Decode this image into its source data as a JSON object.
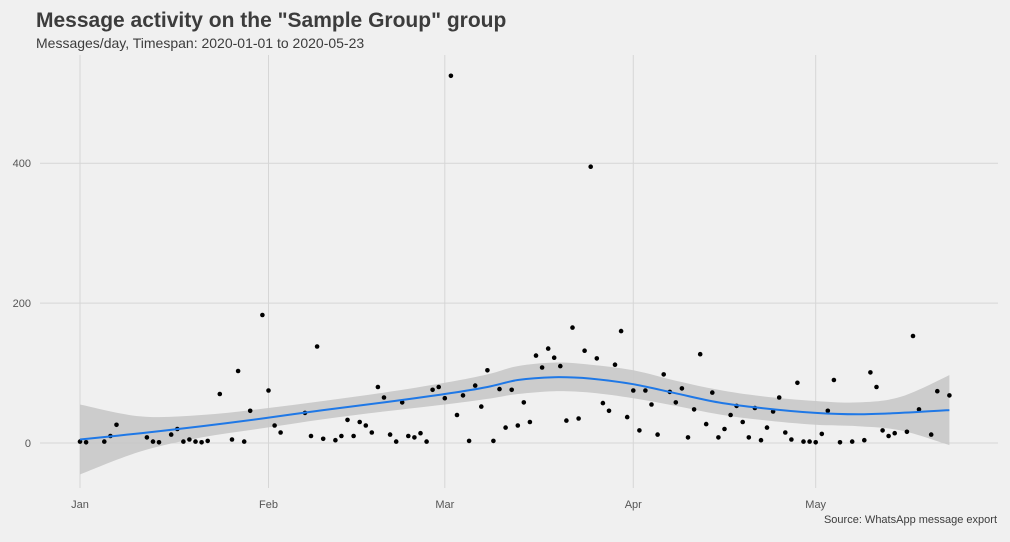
{
  "title": "Message activity on the \"Sample Group\" group",
  "subtitle": "Messages/day, Timespan: 2020-01-01 to 2020-05-23",
  "caption": "Source: WhatsApp message export",
  "chart_data": {
    "type": "scatter",
    "title": "Message activity on the \"Sample Group\" group",
    "subtitle": "Messages/day, Timespan: 2020-01-01 to 2020-05-23",
    "xlabel": "",
    "ylabel": "",
    "x_ticks": [
      {
        "label": "Jan",
        "date": "2020-01-01"
      },
      {
        "label": "Feb",
        "date": "2020-02-01"
      },
      {
        "label": "Mar",
        "date": "2020-03-01"
      },
      {
        "label": "Apr",
        "date": "2020-04-01"
      },
      {
        "label": "May",
        "date": "2020-05-01"
      }
    ],
    "y_ticks": [
      0,
      200,
      400
    ],
    "xlim": [
      "2019-12-31",
      "2020-05-25"
    ],
    "ylim": [
      -80,
      540
    ],
    "grid": true,
    "colors": {
      "points": "#000000",
      "smooth_line": "#1f78e6",
      "confidence_band": "#c8c8c8",
      "grid": "#d6d6d6",
      "background": "#f0f0f0"
    },
    "series": [
      {
        "kind": "points",
        "points": [
          [
            "2020-01-01",
            2
          ],
          [
            "2020-01-02",
            1
          ],
          [
            "2020-01-05",
            2
          ],
          [
            "2020-01-06",
            10
          ],
          [
            "2020-01-07",
            26
          ],
          [
            "2020-01-12",
            8
          ],
          [
            "2020-01-13",
            2
          ],
          [
            "2020-01-14",
            1
          ],
          [
            "2020-01-16",
            12
          ],
          [
            "2020-01-17",
            20
          ],
          [
            "2020-01-18",
            2
          ],
          [
            "2020-01-19",
            5
          ],
          [
            "2020-01-20",
            2
          ],
          [
            "2020-01-21",
            1
          ],
          [
            "2020-01-22",
            3
          ],
          [
            "2020-01-24",
            70
          ],
          [
            "2020-01-26",
            5
          ],
          [
            "2020-01-27",
            103
          ],
          [
            "2020-01-28",
            2
          ],
          [
            "2020-01-29",
            46
          ],
          [
            "2020-01-31",
            183
          ],
          [
            "2020-02-01",
            75
          ],
          [
            "2020-02-02",
            25
          ],
          [
            "2020-02-03",
            15
          ],
          [
            "2020-02-07",
            43
          ],
          [
            "2020-02-08",
            10
          ],
          [
            "2020-02-09",
            138
          ],
          [
            "2020-02-10",
            6
          ],
          [
            "2020-02-12",
            4
          ],
          [
            "2020-02-13",
            10
          ],
          [
            "2020-02-14",
            33
          ],
          [
            "2020-02-15",
            10
          ],
          [
            "2020-02-16",
            30
          ],
          [
            "2020-02-17",
            25
          ],
          [
            "2020-02-18",
            15
          ],
          [
            "2020-02-19",
            80
          ],
          [
            "2020-02-20",
            65
          ],
          [
            "2020-02-21",
            12
          ],
          [
            "2020-02-22",
            2
          ],
          [
            "2020-02-23",
            58
          ],
          [
            "2020-02-24",
            10
          ],
          [
            "2020-02-25",
            8
          ],
          [
            "2020-02-26",
            14
          ],
          [
            "2020-02-27",
            2
          ],
          [
            "2020-02-28",
            76
          ],
          [
            "2020-02-29",
            80
          ],
          [
            "2020-03-01",
            64
          ],
          [
            "2020-03-02",
            525
          ],
          [
            "2020-03-03",
            40
          ],
          [
            "2020-03-04",
            68
          ],
          [
            "2020-03-05",
            3
          ],
          [
            "2020-03-06",
            82
          ],
          [
            "2020-03-07",
            52
          ],
          [
            "2020-03-08",
            104
          ],
          [
            "2020-03-09",
            3
          ],
          [
            "2020-03-10",
            77
          ],
          [
            "2020-03-11",
            22
          ],
          [
            "2020-03-12",
            76
          ],
          [
            "2020-03-13",
            25
          ],
          [
            "2020-03-14",
            58
          ],
          [
            "2020-03-15",
            30
          ],
          [
            "2020-03-16",
            125
          ],
          [
            "2020-03-17",
            108
          ],
          [
            "2020-03-18",
            135
          ],
          [
            "2020-03-19",
            122
          ],
          [
            "2020-03-20",
            110
          ],
          [
            "2020-03-21",
            32
          ],
          [
            "2020-03-22",
            165
          ],
          [
            "2020-03-23",
            35
          ],
          [
            "2020-03-24",
            132
          ],
          [
            "2020-03-25",
            395
          ],
          [
            "2020-03-26",
            121
          ],
          [
            "2020-03-27",
            57
          ],
          [
            "2020-03-28",
            46
          ],
          [
            "2020-03-29",
            112
          ],
          [
            "2020-03-30",
            160
          ],
          [
            "2020-03-31",
            37
          ],
          [
            "2020-04-01",
            75
          ],
          [
            "2020-04-02",
            18
          ],
          [
            "2020-04-03",
            75
          ],
          [
            "2020-04-04",
            55
          ],
          [
            "2020-04-05",
            12
          ],
          [
            "2020-04-06",
            98
          ],
          [
            "2020-04-07",
            73
          ],
          [
            "2020-04-08",
            58
          ],
          [
            "2020-04-09",
            78
          ],
          [
            "2020-04-10",
            8
          ],
          [
            "2020-04-11",
            48
          ],
          [
            "2020-04-12",
            127
          ],
          [
            "2020-04-13",
            27
          ],
          [
            "2020-04-14",
            72
          ],
          [
            "2020-04-15",
            8
          ],
          [
            "2020-04-16",
            20
          ],
          [
            "2020-04-17",
            40
          ],
          [
            "2020-04-18",
            53
          ],
          [
            "2020-04-19",
            30
          ],
          [
            "2020-04-20",
            8
          ],
          [
            "2020-04-21",
            50
          ],
          [
            "2020-04-22",
            4
          ],
          [
            "2020-04-23",
            22
          ],
          [
            "2020-04-24",
            45
          ],
          [
            "2020-04-25",
            65
          ],
          [
            "2020-04-26",
            15
          ],
          [
            "2020-04-27",
            5
          ],
          [
            "2020-04-28",
            86
          ],
          [
            "2020-04-29",
            2
          ],
          [
            "2020-04-30",
            2
          ],
          [
            "2020-05-01",
            1
          ],
          [
            "2020-05-02",
            13
          ],
          [
            "2020-05-03",
            46
          ],
          [
            "2020-05-04",
            90
          ],
          [
            "2020-05-05",
            1
          ],
          [
            "2020-05-07",
            2
          ],
          [
            "2020-05-09",
            4
          ],
          [
            "2020-05-10",
            101
          ],
          [
            "2020-05-11",
            80
          ],
          [
            "2020-05-12",
            18
          ],
          [
            "2020-05-13",
            10
          ],
          [
            "2020-05-14",
            14
          ],
          [
            "2020-05-16",
            16
          ],
          [
            "2020-05-17",
            153
          ],
          [
            "2020-05-18",
            48
          ],
          [
            "2020-05-20",
            12
          ],
          [
            "2020-05-21",
            74
          ],
          [
            "2020-05-23",
            68
          ]
        ]
      },
      {
        "kind": "smooth",
        "points": [
          [
            "2020-01-01",
            5
          ],
          [
            "2020-01-11",
            14
          ],
          [
            "2020-01-21",
            24
          ],
          [
            "2020-01-31",
            35
          ],
          [
            "2020-02-10",
            47
          ],
          [
            "2020-02-20",
            58
          ],
          [
            "2020-03-01",
            70
          ],
          [
            "2020-03-08",
            80
          ],
          [
            "2020-03-13",
            90
          ],
          [
            "2020-03-19",
            94
          ],
          [
            "2020-03-25",
            92
          ],
          [
            "2020-04-01",
            84
          ],
          [
            "2020-04-08",
            71
          ],
          [
            "2020-04-15",
            58
          ],
          [
            "2020-04-22",
            50
          ],
          [
            "2020-05-01",
            43
          ],
          [
            "2020-05-08",
            41
          ],
          [
            "2020-05-15",
            43
          ],
          [
            "2020-05-23",
            47
          ]
        ],
        "band_upper": [
          [
            "2020-01-01",
            55
          ],
          [
            "2020-01-11",
            38
          ],
          [
            "2020-01-21",
            40
          ],
          [
            "2020-01-31",
            49
          ],
          [
            "2020-02-10",
            60
          ],
          [
            "2020-02-20",
            72
          ],
          [
            "2020-03-01",
            86
          ],
          [
            "2020-03-08",
            98
          ],
          [
            "2020-03-13",
            110
          ],
          [
            "2020-03-19",
            115
          ],
          [
            "2020-03-25",
            112
          ],
          [
            "2020-04-01",
            104
          ],
          [
            "2020-04-08",
            89
          ],
          [
            "2020-04-15",
            76
          ],
          [
            "2020-04-22",
            67
          ],
          [
            "2020-05-01",
            60
          ],
          [
            "2020-05-08",
            58
          ],
          [
            "2020-05-15",
            66
          ],
          [
            "2020-05-23",
            97
          ]
        ],
        "band_lower": [
          [
            "2020-01-01",
            -45
          ],
          [
            "2020-01-11",
            -12
          ],
          [
            "2020-01-21",
            8
          ],
          [
            "2020-01-31",
            21
          ],
          [
            "2020-02-10",
            34
          ],
          [
            "2020-02-20",
            45
          ],
          [
            "2020-03-01",
            55
          ],
          [
            "2020-03-08",
            63
          ],
          [
            "2020-03-13",
            70
          ],
          [
            "2020-03-19",
            74
          ],
          [
            "2020-03-25",
            72
          ],
          [
            "2020-04-01",
            64
          ],
          [
            "2020-04-08",
            53
          ],
          [
            "2020-04-15",
            41
          ],
          [
            "2020-04-22",
            33
          ],
          [
            "2020-05-01",
            26
          ],
          [
            "2020-05-08",
            24
          ],
          [
            "2020-05-15",
            18
          ],
          [
            "2020-05-23",
            -3
          ]
        ]
      }
    ]
  }
}
